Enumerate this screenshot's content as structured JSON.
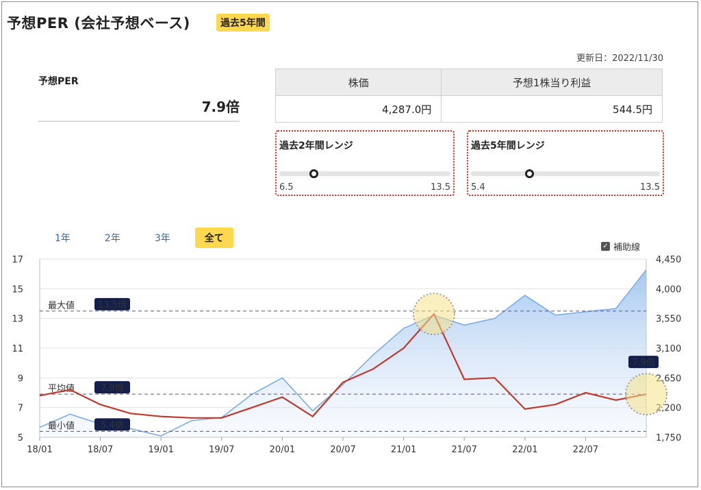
{
  "header": {
    "title": "予想PER (会社予想ベース)",
    "period_badge": "過去5年間",
    "updated": "更新日：2022/11/30"
  },
  "per": {
    "label": "予想PER",
    "value": "7.9倍"
  },
  "price_table": {
    "col1_header": "株価",
    "col2_header": "予想1株当り利益",
    "col1_value": "4,287.0円",
    "col2_value": "544.5円"
  },
  "ranges": [
    {
      "title": "過去2年間レンジ",
      "min_label": "6.5",
      "max_label": "13.5",
      "min": 6.5,
      "max": 13.5,
      "current": 7.9
    },
    {
      "title": "過去5年間レンジ",
      "min_label": "5.4",
      "max_label": "13.5",
      "min": 5.4,
      "max": 13.5,
      "current": 7.9
    }
  ],
  "tabs": [
    {
      "label": "1年",
      "active": false
    },
    {
      "label": "2年",
      "active": false
    },
    {
      "label": "3年",
      "active": false
    },
    {
      "label": "全て",
      "active": true
    }
  ],
  "aux_toggle": {
    "label": "補助線",
    "checked": true
  },
  "chart_data": {
    "type": "line",
    "x": [
      "2018-01",
      "2018-04",
      "2018-07",
      "2018-10",
      "2019-01",
      "2019-04",
      "2019-07",
      "2019-10",
      "2020-01",
      "2020-04",
      "2020-07",
      "2020-10",
      "2021-01",
      "2021-04",
      "2021-07",
      "2021-10",
      "2022-01",
      "2022-04",
      "2022-07",
      "2022-10",
      "2022-11"
    ],
    "x_tick_labels": [
      "18/01",
      "18/07",
      "19/01",
      "19/07",
      "20/01",
      "20/07",
      "21/01",
      "21/07",
      "22/01",
      "22/07"
    ],
    "series": [
      {
        "axis": "left",
        "color": "#c0392b",
        "values": [
          7.8,
          8.2,
          7.2,
          6.6,
          6.4,
          6.3,
          6.3,
          7.0,
          7.7,
          6.4,
          8.7,
          9.6,
          11.0,
          13.3,
          8.9,
          9.0,
          6.9,
          7.2,
          8.0,
          7.5,
          7.9
        ]
      },
      {
        "axis": "right",
        "color": "#74a9e8",
        "values": [
          1900,
          2100,
          1950,
          1880,
          1770,
          2000,
          2050,
          2400,
          2650,
          2150,
          2550,
          3000,
          3400,
          3600,
          3450,
          3550,
          3900,
          3600,
          3650,
          3700,
          4287
        ]
      }
    ],
    "left_axis": {
      "min": 5,
      "max": 17,
      "ticks": [
        "5",
        "7",
        "9",
        "11",
        "13",
        "15",
        "17"
      ]
    },
    "right_axis": {
      "min": 1750,
      "max": 4450,
      "ticks": [
        "1,750",
        "2,200",
        "2,650",
        "3,100",
        "3,550",
        "4,000",
        "4,450"
      ]
    },
    "reference_lines": [
      {
        "label": "最大値",
        "badge": "13.5倍",
        "value": 13.5
      },
      {
        "label": "平均値",
        "badge": "7.9倍",
        "value": 7.9
      },
      {
        "label": "最小値",
        "badge": "5.4倍",
        "value": 5.4
      }
    ],
    "last_value_badge": "7.9倍",
    "grid": true
  }
}
